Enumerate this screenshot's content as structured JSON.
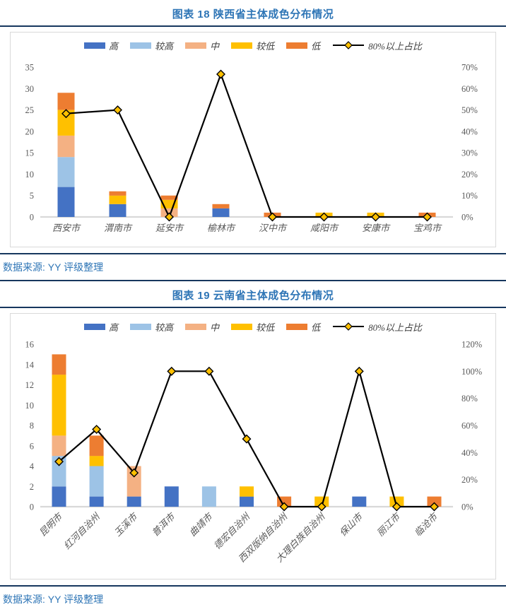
{
  "colors": {
    "accent_blue": "#2E75B6",
    "rule_navy": "#17375E",
    "axis_text": "#595959",
    "box_border": "#D9D9D9",
    "bar_high": "#4472C4",
    "bar_rel_high": "#9DC3E6",
    "bar_mid": "#F4B183",
    "bar_rel_low": "#FFC000",
    "bar_low": "#ED7D31",
    "line_black": "#000000",
    "marker_fill": "#FFC000"
  },
  "sources": [
    "数据来源: YY 评级整理",
    "数据来源: YY 评级整理"
  ],
  "chart_data": [
    {
      "type": "bar",
      "subtype": "stacked-bars-with-percent-line",
      "title": "图表 18 陕西省主体成色分布情况",
      "categories": [
        "西安市",
        "渭南市",
        "延安市",
        "榆林市",
        "汉中市",
        "咸阳市",
        "安康市",
        "宝鸡市"
      ],
      "series": [
        {
          "name": "高",
          "color": "#4472C4",
          "values": [
            7,
            3,
            0,
            2,
            0,
            0,
            0,
            0
          ]
        },
        {
          "name": "较高",
          "color": "#9DC3E6",
          "values": [
            7,
            0,
            0,
            0,
            0,
            0,
            0,
            0
          ]
        },
        {
          "name": "中",
          "color": "#F4B183",
          "values": [
            5,
            0,
            2,
            0,
            0,
            0,
            0,
            0
          ]
        },
        {
          "name": "较低",
          "color": "#FFC000",
          "values": [
            6,
            2,
            2,
            0,
            0,
            1,
            1,
            0
          ]
        },
        {
          "name": "低",
          "color": "#ED7D31",
          "values": [
            4,
            1,
            1,
            1,
            1,
            0,
            0,
            1
          ]
        }
      ],
      "line_series": {
        "name": "80%以上占比",
        "color": "#000000",
        "marker_fill": "#FFC000",
        "values_pct": [
          48.3,
          50.0,
          0.0,
          66.7,
          0.0,
          0.0,
          0.0,
          0.0
        ]
      },
      "left_axis": {
        "min": 0,
        "max": 35,
        "step": 5
      },
      "right_axis": {
        "min": 0,
        "max": 70,
        "step": 10,
        "suffix": "%"
      },
      "legend_position": "top",
      "grid": false,
      "x_label_rotation": 0
    },
    {
      "type": "bar",
      "subtype": "stacked-bars-with-percent-line",
      "title": "图表 19 云南省主体成色分布情况",
      "categories": [
        "昆明市",
        "红河自治州",
        "玉溪市",
        "普洱市",
        "曲靖市",
        "德宏自治州",
        "西双版纳自治州",
        "大理白族自治州",
        "保山市",
        "丽江市",
        "临沧市"
      ],
      "series": [
        {
          "name": "高",
          "color": "#4472C4",
          "values": [
            2,
            1,
            1,
            2,
            0,
            1,
            0,
            0,
            1,
            0,
            0
          ]
        },
        {
          "name": "较高",
          "color": "#9DC3E6",
          "values": [
            3,
            3,
            0,
            0,
            2,
            0,
            0,
            0,
            0,
            0,
            0
          ]
        },
        {
          "name": "中",
          "color": "#F4B183",
          "values": [
            2,
            0,
            3,
            0,
            0,
            0,
            0,
            0,
            0,
            0,
            0
          ]
        },
        {
          "name": "较低",
          "color": "#FFC000",
          "values": [
            6,
            1,
            0,
            0,
            0,
            1,
            0,
            1,
            0,
            1,
            0
          ]
        },
        {
          "name": "低",
          "color": "#ED7D31",
          "values": [
            2,
            2,
            0,
            0,
            0,
            0,
            1,
            0,
            0,
            0,
            1
          ]
        }
      ],
      "line_series": {
        "name": "80%以上占比",
        "color": "#000000",
        "marker_fill": "#FFC000",
        "values_pct": [
          33.3,
          57.1,
          25.0,
          100.0,
          100.0,
          50.0,
          0.0,
          0.0,
          100.0,
          0.0,
          0.0
        ]
      },
      "left_axis": {
        "min": 0,
        "max": 16,
        "step": 2
      },
      "right_axis": {
        "min": 0,
        "max": 120,
        "step": 20,
        "suffix": "%"
      },
      "legend_position": "top",
      "grid": false,
      "x_label_rotation": 45
    }
  ]
}
